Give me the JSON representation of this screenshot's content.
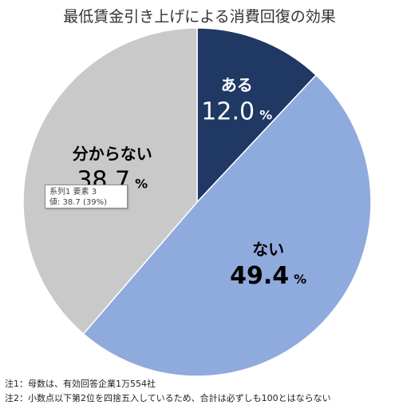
{
  "chart_data": {
    "type": "pie",
    "title": "最低賃金引き上げによる消費回復の効果",
    "unit": "%",
    "slices": [
      {
        "label": "ある",
        "value": 12.0,
        "value_text": "12.0",
        "color": "#1f3864"
      },
      {
        "label": "ない",
        "value": 49.4,
        "value_text": "49.4",
        "color": "#8faadc"
      },
      {
        "label": "分からない",
        "value": 38.7,
        "value_text": "38.7",
        "color": "#c9c9c9"
      }
    ],
    "tooltip": {
      "line1": "系列1 要素 3",
      "line2": "値: 38.7 (39%)"
    },
    "notes": [
      "注1：母数は、有効回答企業1万554社",
      "注2：小数点以下第2位を四捨五入しているため、合計は必ずしも100とはならない"
    ]
  }
}
